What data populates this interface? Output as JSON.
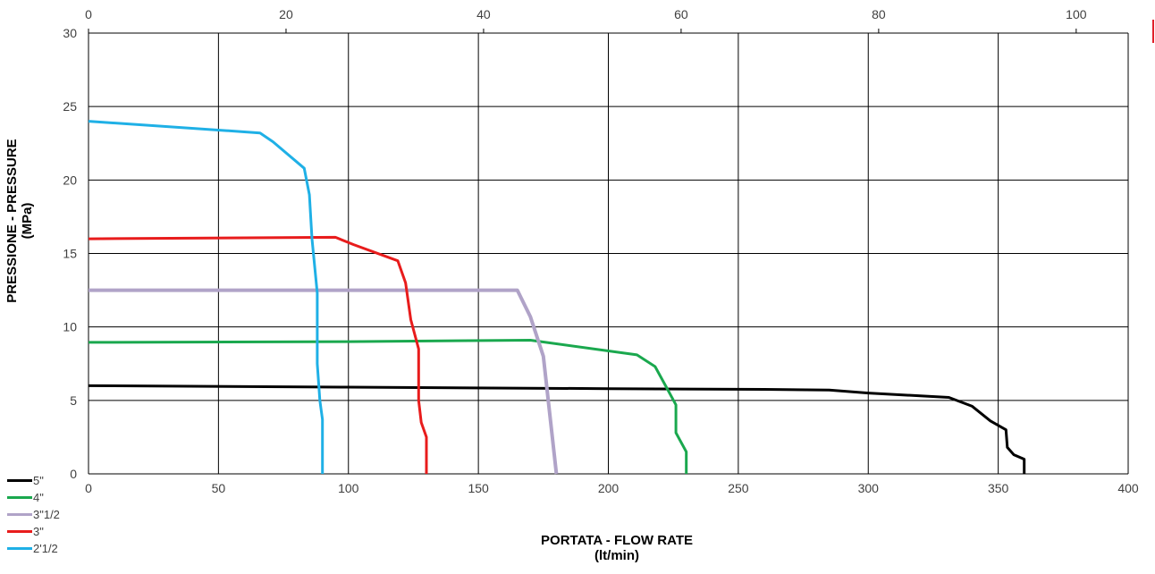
{
  "chart_data": {
    "type": "line",
    "xlabel_line1": "PORTATA - FLOW RATE",
    "xlabel_line2": "(lt/min)",
    "ylabel_line1": "PRESSIONE - PRESSURE",
    "ylabel_line2": "(MPa)",
    "xlim": [
      0,
      400
    ],
    "ylim": [
      0,
      30
    ],
    "x_ticks": [
      "0",
      "50",
      "100",
      "150",
      "200",
      "250",
      "300",
      "350",
      "400"
    ],
    "y_ticks": [
      "0",
      "5",
      "10",
      "15",
      "20",
      "25",
      "30"
    ],
    "x2_ticks": [
      "0",
      "20",
      "40",
      "60",
      "80",
      "100"
    ],
    "x2_ticks_positions_in_x_units": [
      0,
      76,
      152,
      228,
      304,
      380
    ],
    "grid": true,
    "legend_placement": "bottom-left",
    "series": [
      {
        "name": "5\"",
        "color": "#000000",
        "points": [
          [
            0,
            6.0
          ],
          [
            100,
            5.9
          ],
          [
            200,
            5.8
          ],
          [
            260,
            5.75
          ],
          [
            285,
            5.7
          ],
          [
            300,
            5.5
          ],
          [
            331,
            5.2
          ],
          [
            340,
            4.6
          ],
          [
            347,
            3.6
          ],
          [
            353,
            3.0
          ],
          [
            353.5,
            1.8
          ],
          [
            356,
            1.3
          ],
          [
            360,
            1.0
          ],
          [
            360,
            0
          ]
        ]
      },
      {
        "name": "4\"",
        "color": "#1aa84e",
        "points": [
          [
            0,
            8.95
          ],
          [
            100,
            9.0
          ],
          [
            170,
            9.1
          ],
          [
            211,
            8.1
          ],
          [
            218,
            7.3
          ],
          [
            222,
            6.0
          ],
          [
            226,
            4.7
          ],
          [
            226,
            2.8
          ],
          [
            230,
            1.5
          ],
          [
            230,
            0
          ]
        ]
      },
      {
        "name": "3\"1/2",
        "color": "#b0a3c8",
        "points": [
          [
            0,
            12.5
          ],
          [
            165,
            12.5
          ],
          [
            170,
            10.7
          ],
          [
            175,
            8.0
          ],
          [
            180,
            0
          ]
        ]
      },
      {
        "name": "3\"",
        "color": "#e81c1c",
        "points": [
          [
            0,
            16.0
          ],
          [
            95,
            16.1
          ],
          [
            102,
            15.6
          ],
          [
            119,
            14.5
          ],
          [
            122,
            13.0
          ],
          [
            124,
            10.5
          ],
          [
            127,
            8.5
          ],
          [
            127,
            5.0
          ],
          [
            128,
            3.5
          ],
          [
            130,
            2.5
          ],
          [
            130,
            0
          ]
        ]
      },
      {
        "name": "2'1/2",
        "color": "#1fb0e6",
        "points": [
          [
            0,
            24.0
          ],
          [
            66,
            23.2
          ],
          [
            71,
            22.6
          ],
          [
            83,
            20.8
          ],
          [
            85,
            19.0
          ],
          [
            86,
            16.0
          ],
          [
            88,
            12.3
          ],
          [
            88,
            7.5
          ],
          [
            89,
            5.0
          ],
          [
            90,
            3.7
          ],
          [
            90,
            0
          ]
        ]
      }
    ]
  }
}
